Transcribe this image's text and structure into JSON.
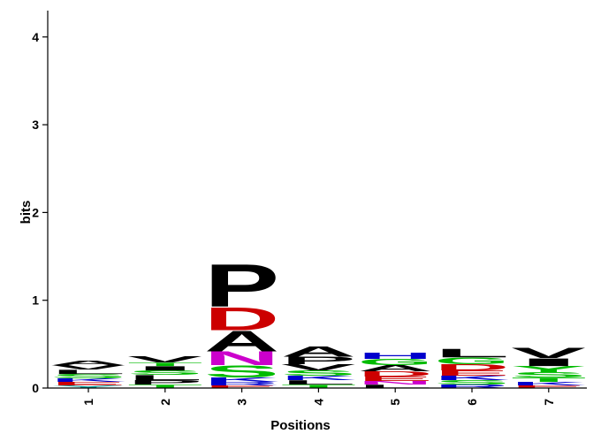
{
  "chart_data": {
    "type": "sequence-logo",
    "ylabel": "bits",
    "xlabel": "Positions",
    "ylim": [
      0,
      4.3
    ],
    "y_ticks": [
      0,
      1,
      2,
      3,
      4
    ],
    "positions": [
      {
        "label": "1",
        "stack": [
          {
            "letter": "Y",
            "bits": 0.03,
            "color": "#00a0a0"
          },
          {
            "letter": "E",
            "bits": 0.04,
            "color": "#cc0000"
          },
          {
            "letter": "K",
            "bits": 0.04,
            "color": "#0000cc"
          },
          {
            "letter": "S",
            "bits": 0.05,
            "color": "#00bb00"
          },
          {
            "letter": "L",
            "bits": 0.05,
            "color": "#000000"
          },
          {
            "letter": "V",
            "bits": 0.05,
            "color": "#000000"
          },
          {
            "letter": "A",
            "bits": 0.05,
            "color": "#000000"
          }
        ]
      },
      {
        "label": "2",
        "stack": [
          {
            "letter": "T",
            "bits": 0.04,
            "color": "#00bb00"
          },
          {
            "letter": "P",
            "bits": 0.05,
            "color": "#000000"
          },
          {
            "letter": "L",
            "bits": 0.06,
            "color": "#000000"
          },
          {
            "letter": "S",
            "bits": 0.05,
            "color": "#00bb00"
          },
          {
            "letter": "I",
            "bits": 0.05,
            "color": "#000000"
          },
          {
            "letter": "T",
            "bits": 0.04,
            "color": "#00bb00"
          },
          {
            "letter": "V",
            "bits": 0.07,
            "color": "#000000"
          }
        ]
      },
      {
        "label": "3",
        "stack": [
          {
            "letter": "E",
            "bits": 0.03,
            "color": "#cc0000"
          },
          {
            "letter": "R",
            "bits": 0.04,
            "color": "#0000cc"
          },
          {
            "letter": "K",
            "bits": 0.05,
            "color": "#0000cc"
          },
          {
            "letter": "S",
            "bits": 0.14,
            "color": "#00bb00"
          },
          {
            "letter": "N",
            "bits": 0.16,
            "color": "#cc00cc"
          },
          {
            "letter": "A",
            "bits": 0.24,
            "color": "#000000"
          },
          {
            "letter": "D",
            "bits": 0.27,
            "color": "#cc0000"
          },
          {
            "letter": "P",
            "bits": 0.5,
            "color": "#000000"
          }
        ]
      },
      {
        "label": "4",
        "stack": [
          {
            "letter": "T",
            "bits": 0.04,
            "color": "#00bb00"
          },
          {
            "letter": "L",
            "bits": 0.05,
            "color": "#000000"
          },
          {
            "letter": "K",
            "bits": 0.05,
            "color": "#0000cc"
          },
          {
            "letter": "S",
            "bits": 0.06,
            "color": "#00bb00"
          },
          {
            "letter": "V",
            "bits": 0.07,
            "color": "#000000"
          },
          {
            "letter": "P",
            "bits": 0.09,
            "color": "#000000"
          },
          {
            "letter": "A",
            "bits": 0.12,
            "color": "#000000"
          }
        ]
      },
      {
        "label": "5",
        "stack": [
          {
            "letter": "L",
            "bits": 0.04,
            "color": "#000000"
          },
          {
            "letter": "N",
            "bits": 0.04,
            "color": "#cc00cc"
          },
          {
            "letter": "E",
            "bits": 0.05,
            "color": "#cc0000"
          },
          {
            "letter": "D",
            "bits": 0.06,
            "color": "#cc0000"
          },
          {
            "letter": "A",
            "bits": 0.07,
            "color": "#000000"
          },
          {
            "letter": "G",
            "bits": 0.07,
            "color": "#00bb00"
          },
          {
            "letter": "H",
            "bits": 0.07,
            "color": "#0000cc"
          }
        ]
      },
      {
        "label": "6",
        "stack": [
          {
            "letter": "R",
            "bits": 0.04,
            "color": "#0000cc"
          },
          {
            "letter": "S",
            "bits": 0.05,
            "color": "#00bb00"
          },
          {
            "letter": "K",
            "bits": 0.05,
            "color": "#0000cc"
          },
          {
            "letter": "E",
            "bits": 0.06,
            "color": "#cc0000"
          },
          {
            "letter": "D",
            "bits": 0.07,
            "color": "#cc0000"
          },
          {
            "letter": "G",
            "bits": 0.08,
            "color": "#00bb00"
          },
          {
            "letter": "L",
            "bits": 0.1,
            "color": "#000000"
          }
        ]
      },
      {
        "label": "7",
        "stack": [
          {
            "letter": "E",
            "bits": 0.03,
            "color": "#cc0000"
          },
          {
            "letter": "K",
            "bits": 0.04,
            "color": "#0000cc"
          },
          {
            "letter": "T",
            "bits": 0.05,
            "color": "#00bb00"
          },
          {
            "letter": "S",
            "bits": 0.06,
            "color": "#00bb00"
          },
          {
            "letter": "Y",
            "bits": 0.07,
            "color": "#00bb00"
          },
          {
            "letter": "I",
            "bits": 0.09,
            "color": "#000000"
          },
          {
            "letter": "V",
            "bits": 0.12,
            "color": "#000000"
          }
        ]
      }
    ]
  }
}
